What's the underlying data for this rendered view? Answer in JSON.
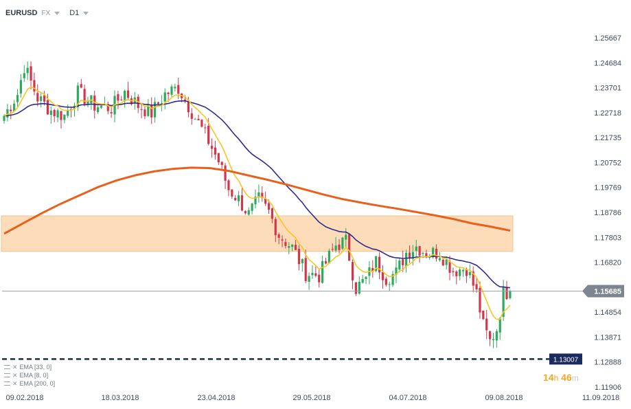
{
  "toolbar": {
    "symbol": "EURUSD",
    "market": "FX",
    "timeframe": "D1"
  },
  "legend": [
    {
      "label": "EMA  [33, 0]"
    },
    {
      "label": "EMA  [8, 0]"
    },
    {
      "label": "EMA  [200, 0]"
    }
  ],
  "countdown": {
    "hours": "14",
    "h_unit": "h",
    "minutes": "46",
    "m_unit": "m"
  },
  "colors": {
    "bull": "#2eaa5c",
    "bear": "#d3364a",
    "ema_fast": "#f7c624",
    "ema_mid": "#2e2a8c",
    "ema_slow": "#e8601c",
    "zone": "#fcd7ad",
    "support": "#1b2a5c",
    "price_tag": "#7d8690",
    "support_tag": "#1b2a5c"
  },
  "chart_data": {
    "type": "candlestick",
    "x_ticks": [
      "09.02.2018",
      "18.03.2018",
      "23.04.2018",
      "29.05.2018",
      "04.07.2018",
      "09.08.2018",
      "11.09.2018"
    ],
    "y_ticks": [
      "1.25667",
      "1.24684",
      "1.23701",
      "1.22718",
      "1.21735",
      "1.20752",
      "1.19769",
      "1.18786",
      "1.17803",
      "1.16820",
      "1.15837",
      "1.14854",
      "1.13871",
      "1.12888",
      "1.11906"
    ],
    "ylim": [
      1.11906,
      1.25667
    ],
    "last_price": "1.15685",
    "support_level": "1.13007",
    "zone": {
      "from_candle": 0,
      "to_candle": 151,
      "low": 1.1725,
      "high": 1.1865
    },
    "ema_fast_period": 8,
    "ema_mid_period": 33,
    "ema_slow_period": 200,
    "ema_slow": [
      1.1795,
      1.1835,
      1.1875,
      1.1912,
      1.1945,
      1.1978,
      1.2005,
      1.2025,
      1.204,
      1.205,
      1.2055,
      1.2053,
      1.2042,
      1.2025,
      1.2008,
      1.199,
      1.197,
      1.195,
      1.1932,
      1.1918,
      1.1905,
      1.1893,
      1.188,
      1.1867,
      1.1852,
      1.1835,
      1.1822,
      1.1807
    ],
    "anchors": [
      [
        0,
        1.226
      ],
      [
        4,
        1.2345
      ],
      [
        6,
        1.2455
      ],
      [
        10,
        1.233
      ],
      [
        14,
        1.228
      ],
      [
        18,
        1.226
      ],
      [
        22,
        1.235
      ],
      [
        27,
        1.23
      ],
      [
        32,
        1.229
      ],
      [
        36,
        1.2355
      ],
      [
        40,
        1.23
      ],
      [
        44,
        1.227
      ],
      [
        48,
        1.2345
      ],
      [
        52,
        1.237
      ],
      [
        55,
        1.23
      ],
      [
        58,
        1.223
      ],
      [
        61,
        1.216
      ],
      [
        64,
        1.208
      ],
      [
        67,
        1.197
      ],
      [
        70,
        1.193
      ],
      [
        73,
        1.187
      ],
      [
        76,
        1.193
      ],
      [
        79,
        1.188
      ],
      [
        82,
        1.179
      ],
      [
        86,
        1.174
      ],
      [
        90,
        1.164
      ],
      [
        94,
        1.163
      ],
      [
        96,
        1.168
      ],
      [
        99,
        1.175
      ],
      [
        102,
        1.1765
      ],
      [
        105,
        1.158
      ],
      [
        108,
        1.1615
      ],
      [
        111,
        1.1685
      ],
      [
        114,
        1.162
      ],
      [
        117,
        1.164
      ],
      [
        120,
        1.172
      ],
      [
        123,
        1.1745
      ],
      [
        126,
        1.172
      ],
      [
        130,
        1.172
      ],
      [
        134,
        1.165
      ],
      [
        138,
        1.166
      ],
      [
        141,
        1.156
      ],
      [
        143,
        1.143
      ],
      [
        145,
        1.137
      ],
      [
        147,
        1.142
      ],
      [
        149,
        1.156
      ],
      [
        151,
        1.1568
      ]
    ]
  }
}
